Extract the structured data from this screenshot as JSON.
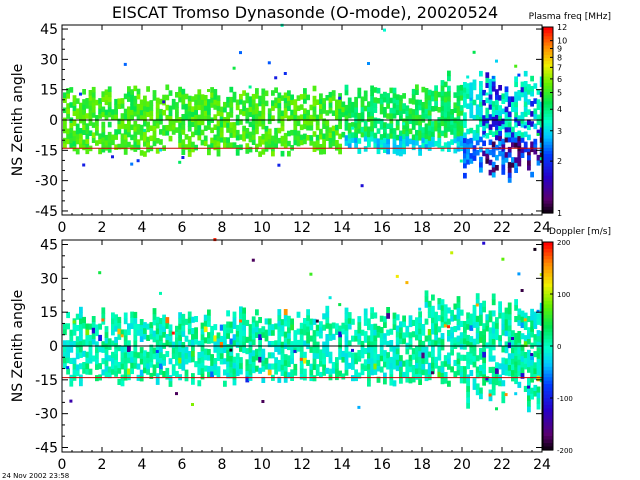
{
  "title": "EISCAT Tromso Dynasonde (O-mode),  20020524",
  "footer": "24 Nov 2002 23:58",
  "chart_data": [
    {
      "type": "heatmap",
      "ylabel": "NS Zenith angle",
      "xlim": [
        0,
        24
      ],
      "ylim": [
        -47,
        47
      ],
      "x_ticks": [
        "0",
        "2",
        "4",
        "6",
        "8",
        "10",
        "12",
        "14",
        "16",
        "18",
        "20",
        "22",
        "24"
      ],
      "y_ticks": [
        "45",
        "30",
        "15",
        "0",
        "-15",
        "-30",
        "-45"
      ],
      "reference_lines": [
        {
          "y": 0,
          "color": "#000000"
        },
        {
          "y": -14,
          "color": "#cc0000"
        }
      ],
      "colorbar": {
        "label": "Plasma freq [MHz]",
        "scale": "log",
        "range": [
          1,
          12
        ],
        "tick_labels": [
          "12",
          "10",
          "9",
          "8",
          "7",
          "6",
          "5",
          "4",
          "3",
          "2",
          "1"
        ]
      },
      "description_values": {
        "main_band_y": [
          -18,
          12
        ],
        "typical_freq_early": 4.5,
        "typical_freq_late": 2.5
      }
    },
    {
      "type": "heatmap",
      "ylabel": "NS Zenith angle",
      "xlim": [
        0,
        24
      ],
      "ylim": [
        -47,
        47
      ],
      "x_ticks": [
        "0",
        "2",
        "4",
        "6",
        "8",
        "10",
        "12",
        "14",
        "16",
        "18",
        "20",
        "22",
        "24"
      ],
      "y_ticks": [
        "45",
        "30",
        "15",
        "0",
        "-15",
        "-30",
        "-45"
      ],
      "reference_lines": [
        {
          "y": 0,
          "color": "#000000"
        },
        {
          "y": -14,
          "color": "#cc0000"
        }
      ],
      "colorbar": {
        "label": "Doppler [m/s]",
        "scale": "linear",
        "range": [
          -200,
          200
        ],
        "tick_labels": [
          "200",
          "100",
          "0",
          "-100",
          "-200"
        ]
      },
      "description_values": {
        "main_band_y": [
          -18,
          12
        ],
        "typical_doppler": 20
      }
    }
  ]
}
